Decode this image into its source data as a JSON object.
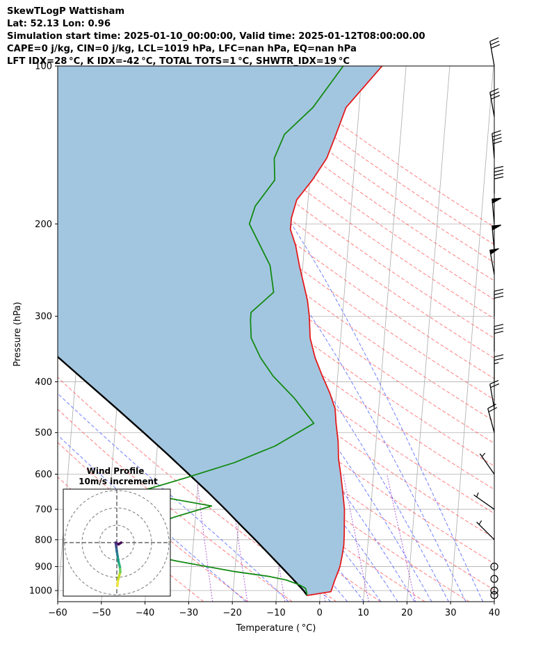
{
  "header": {
    "line1": "SkewTLogP Wattisham",
    "line2": "Lat: 52.13   Lon: 0.96",
    "line3": "Simulation start time: 2025-01-10_00:00:00, Valid time: 2025-01-12T08:00:00.00",
    "line4": "CAPE=0 j/kg, CIN=0 j/kg, LCL=1019 hPa, LFC=nan hPa, EQ=nan hPa",
    "line5": "LFT IDX=28 °C, K IDX=-42 °C, TOTAL TOTS=1 °C, SHWTR_IDX=19 °C"
  },
  "chart_data": {
    "type": "skewt",
    "xlabel": "Temperature ( °C)",
    "ylabel": "Pressure (hPa)",
    "xlim": [
      -60,
      40
    ],
    "ylim": [
      1050,
      100
    ],
    "y_scale": "log",
    "x_ticks": [
      "−60",
      "−50",
      "−40",
      "−30",
      "−20",
      "−10",
      "0",
      "10",
      "20",
      "30",
      "40"
    ],
    "x_tick_values": [
      -60,
      -50,
      -40,
      -30,
      -20,
      -10,
      0,
      10,
      20,
      30,
      40
    ],
    "y_ticks": [
      "100",
      "200",
      "300",
      "400",
      "500",
      "600",
      "700",
      "800",
      "900",
      "1000"
    ],
    "y_tick_values": [
      100,
      200,
      300,
      400,
      500,
      600,
      700,
      800,
      900,
      1000
    ],
    "grid": true,
    "colors": {
      "temperature": "#e31a1c",
      "dewpoint": "#138a13",
      "parcel": "#000000",
      "cin_shade": "#a3c6e0",
      "dry_adiabat": "#ff5050",
      "moist_adiabat": "#4b5fff",
      "mixing_ratio": "#9933cc",
      "isotherm": "#aaaaaa"
    },
    "temperature": {
      "p": [
        1022,
        1005,
        990,
        960,
        930,
        900,
        860,
        820,
        780,
        740,
        700,
        650,
        600,
        560,
        520,
        480,
        450,
        420,
        390,
        360,
        330,
        300,
        280,
        260,
        240,
        220,
        205,
        195,
        180,
        165,
        150,
        135,
        120,
        100
      ],
      "t": [
        -3,
        2.4,
        2.6,
        3.0,
        3.5,
        4.0,
        4.3,
        4.5,
        4.4,
        4.2,
        4.0,
        3.3,
        2.5,
        1.7,
        1.3,
        0.5,
        0.0,
        -1.5,
        -3.5,
        -5.5,
        -7.0,
        -7.6,
        -8.3,
        -9.5,
        -10.8,
        -12.0,
        -13.5,
        -13.5,
        -12.6,
        -9.4,
        -6.5,
        -4.8,
        -3.0,
        4.5
      ]
    },
    "dewpoint": {
      "p": [
        1022,
        1005,
        990,
        975,
        955,
        940,
        920,
        880,
        840,
        800,
        760,
        725,
        690,
        650,
        610,
        570,
        530,
        480,
        430,
        390,
        360,
        330,
        305,
        295,
        270,
        240,
        200,
        185,
        165,
        150,
        135,
        120,
        100
      ],
      "t": [
        -3.0,
        -3.2,
        -3.5,
        -5,
        -8,
        -12,
        -20,
        -33,
        -45,
        -50,
        -41,
        -35,
        -26.5,
        -44,
        -33,
        -22,
        -13,
        -4.6,
        -9.5,
        -14.8,
        -18.0,
        -20.5,
        -21.0,
        -21.0,
        -16.2,
        -17.5,
        -23.0,
        -22.0,
        -18.0,
        -18.5,
        -16.6,
        -10.6,
        -4.4
      ]
    },
    "parcel": {
      "p": [
        1022,
        1000,
        950,
        900,
        850,
        800,
        750,
        700,
        650,
        600,
        550,
        500,
        450,
        400,
        350,
        300,
        250,
        200,
        150,
        100
      ],
      "t": [
        -3.0,
        -3.9,
        -6.6,
        -9.5,
        -12.6,
        -15.9,
        -19.5,
        -23.3,
        -27.5,
        -32.3,
        -37.5,
        -43.4,
        -50.0,
        -57.5,
        -66.0,
        -75.5,
        -86.5,
        -99.5,
        -115.5,
        -137.0
      ]
    },
    "wind_barbs": [
      {
        "p": 100,
        "speed_kt": 30,
        "dir_deg": 350
      },
      {
        "p": 125,
        "speed_kt": 30,
        "dir_deg": 350
      },
      {
        "p": 150,
        "speed_kt": 40,
        "dir_deg": 355
      },
      {
        "p": 175,
        "speed_kt": 40,
        "dir_deg": 0
      },
      {
        "p": 200,
        "speed_kt": 50,
        "dir_deg": 355
      },
      {
        "p": 225,
        "speed_kt": 50,
        "dir_deg": 355
      },
      {
        "p": 250,
        "speed_kt": 50,
        "dir_deg": 350
      },
      {
        "p": 300,
        "speed_kt": 30,
        "dir_deg": 0
      },
      {
        "p": 350,
        "speed_kt": 30,
        "dir_deg": 0
      },
      {
        "p": 400,
        "speed_kt": 25,
        "dir_deg": 0
      },
      {
        "p": 450,
        "speed_kt": 20,
        "dir_deg": 350
      },
      {
        "p": 500,
        "speed_kt": 20,
        "dir_deg": 345
      },
      {
        "p": 600,
        "speed_kt": 5,
        "dir_deg": 325
      },
      {
        "p": 700,
        "speed_kt": 5,
        "dir_deg": 305
      },
      {
        "p": 800,
        "speed_kt": 5,
        "dir_deg": 315
      },
      {
        "p": 900,
        "speed_kt": 0,
        "dir_deg": 0
      },
      {
        "p": 950,
        "speed_kt": 0,
        "dir_deg": 0
      },
      {
        "p": 1000,
        "speed_kt": 0,
        "dir_deg": 0
      },
      {
        "p": 1020,
        "speed_kt": 0,
        "dir_deg": 0
      }
    ],
    "hodograph": {
      "title": "Wind Profile",
      "subtitle": "10m/s increment",
      "rings_ms": [
        10,
        20,
        30
      ],
      "u": [
        0.3,
        0.8,
        2.0,
        1.8,
        1.0,
        0.5,
        0.0,
        -0.3,
        -0.6,
        1.0,
        2.5
      ],
      "v": [
        -25.0,
        -21.0,
        -17.0,
        -14.0,
        -11.0,
        -8.0,
        -5.0,
        -2.5,
        0.0,
        -1.0,
        0.0
      ]
    }
  }
}
